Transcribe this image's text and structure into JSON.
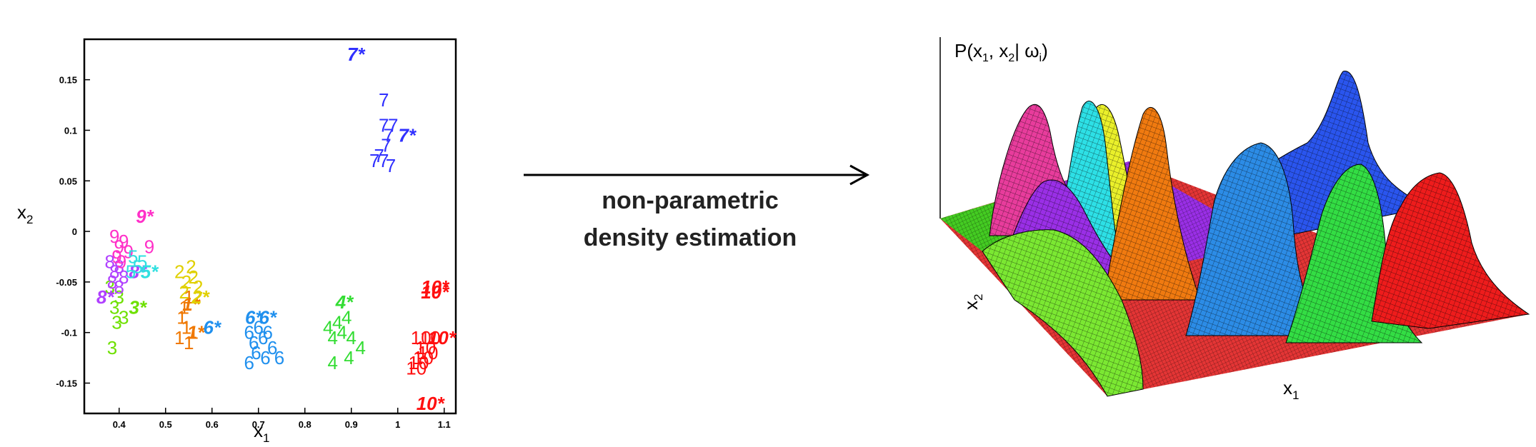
{
  "scatter": {
    "xlabel": "x",
    "xlabel_sub": "1",
    "ylabel": "x",
    "ylabel_sub": "2",
    "x_ticks": [
      "0.4",
      "0.5",
      "0.6",
      "0.7",
      "0.8",
      "0.9",
      "1",
      "1.1"
    ],
    "y_ticks": [
      "0.15",
      "0.1",
      "0.05",
      "0",
      "-0.05",
      "-0.1",
      "-0.15"
    ],
    "xlim": [
      0.325,
      1.125
    ],
    "ylim": [
      -0.18,
      0.19
    ],
    "clusters": [
      {
        "label": "1",
        "color": "#f07800",
        "points": [
          [
            0.53,
            -0.105
          ],
          [
            0.545,
            -0.095
          ],
          [
            0.55,
            -0.11
          ],
          [
            0.535,
            -0.085
          ],
          [
            0.56,
            -0.1
          ],
          [
            0.54,
            -0.075
          ],
          [
            0.55,
            -0.065
          ]
        ],
        "starred": [
          [
            0.565,
            -0.1
          ],
          [
            0.555,
            -0.072
          ]
        ]
      },
      {
        "label": "2",
        "color": "#e0d000",
        "points": [
          [
            0.53,
            -0.04
          ],
          [
            0.545,
            -0.05
          ],
          [
            0.56,
            -0.045
          ],
          [
            0.54,
            -0.06
          ],
          [
            0.555,
            -0.035
          ],
          [
            0.57,
            -0.055
          ]
        ],
        "starred": [
          [
            0.575,
            -0.065
          ]
        ]
      },
      {
        "label": "3",
        "color": "#6ee000",
        "points": [
          [
            0.38,
            -0.055
          ],
          [
            0.39,
            -0.075
          ],
          [
            0.4,
            -0.065
          ],
          [
            0.41,
            -0.085
          ],
          [
            0.395,
            -0.09
          ],
          [
            0.385,
            -0.115
          ]
        ],
        "starred": [
          [
            0.44,
            -0.075
          ]
        ]
      },
      {
        "label": "4",
        "color": "#33dd33",
        "points": [
          [
            0.85,
            -0.095
          ],
          [
            0.86,
            -0.105
          ],
          [
            0.87,
            -0.09
          ],
          [
            0.88,
            -0.1
          ],
          [
            0.89,
            -0.085
          ],
          [
            0.9,
            -0.105
          ],
          [
            0.92,
            -0.115
          ],
          [
            0.86,
            -0.13
          ],
          [
            0.895,
            -0.125
          ]
        ],
        "starred": [
          [
            0.885,
            -0.07
          ]
        ]
      },
      {
        "label": "6",
        "color": "#2090ee",
        "points": [
          [
            0.68,
            -0.1
          ],
          [
            0.69,
            -0.11
          ],
          [
            0.7,
            -0.095
          ],
          [
            0.71,
            -0.105
          ],
          [
            0.72,
            -0.1
          ],
          [
            0.695,
            -0.12
          ],
          [
            0.68,
            -0.13
          ],
          [
            0.715,
            -0.125
          ],
          [
            0.745,
            -0.125
          ],
          [
            0.73,
            -0.115
          ]
        ],
        "starred": [
          [
            0.69,
            -0.085
          ],
          [
            0.72,
            -0.085
          ],
          [
            0.6,
            -0.095
          ]
        ]
      },
      {
        "label": "7",
        "color": "#3030ff",
        "points": [
          [
            0.97,
            0.13
          ],
          [
            0.97,
            0.105
          ],
          [
            0.98,
            0.095
          ],
          [
            0.975,
            0.085
          ],
          [
            0.96,
            0.075
          ],
          [
            0.97,
            0.07
          ],
          [
            0.985,
            0.065
          ],
          [
            0.95,
            0.07
          ],
          [
            0.99,
            0.105
          ]
        ],
        "starred": [
          [
            0.91,
            0.175
          ],
          [
            1.02,
            0.095
          ]
        ]
      },
      {
        "label": "8",
        "color": "#b040ff",
        "points": [
          [
            0.38,
            -0.03
          ],
          [
            0.39,
            -0.04
          ],
          [
            0.4,
            -0.035
          ],
          [
            0.41,
            -0.045
          ],
          [
            0.385,
            -0.05
          ],
          [
            0.4,
            -0.055
          ]
        ],
        "starred": [
          [
            0.37,
            -0.065
          ],
          [
            0.44,
            -0.04
          ]
        ]
      },
      {
        "label": "9",
        "color": "#ff30c8",
        "points": [
          [
            0.39,
            -0.005
          ],
          [
            0.4,
            -0.015
          ],
          [
            0.41,
            -0.01
          ],
          [
            0.395,
            -0.025
          ],
          [
            0.405,
            -0.03
          ],
          [
            0.42,
            -0.02
          ],
          [
            0.465,
            -0.015
          ]
        ],
        "starred": [
          [
            0.455,
            0.015
          ]
        ]
      },
      {
        "label": "5",
        "color": "#30e0e0",
        "points": [
          [
            0.43,
            -0.025
          ],
          [
            0.44,
            -0.035
          ],
          [
            0.45,
            -0.03
          ],
          [
            0.425,
            -0.04
          ]
        ],
        "starred": [
          [
            0.465,
            -0.04
          ]
        ]
      },
      {
        "label": "10",
        "color": "#ff1010",
        "points": [
          [
            1.05,
            -0.105
          ],
          [
            1.06,
            -0.115
          ],
          [
            1.055,
            -0.125
          ],
          [
            1.045,
            -0.13
          ],
          [
            1.065,
            -0.12
          ],
          [
            1.04,
            -0.135
          ],
          [
            1.07,
            -0.105
          ]
        ],
        "starred": [
          [
            1.08,
            -0.055
          ],
          [
            1.08,
            -0.06
          ],
          [
            1.095,
            -0.105
          ],
          [
            1.07,
            -0.17
          ]
        ]
      }
    ]
  },
  "arrow": {
    "line1": "non-parametric",
    "line2": "density estimation"
  },
  "surface": {
    "zlabel_prefix": "P(x",
    "zlabel_s1": "1",
    "zlabel_mid": ", x",
    "zlabel_s2": "2",
    "zlabel_mid2": "| ω",
    "zlabel_s3": "i",
    "zlabel_end": ")",
    "xlabel": "x",
    "xlabel_sub": "1",
    "ylabel": "x",
    "ylabel_sub": "2",
    "colors": {
      "magenta": "#e83c9c",
      "purple": "#9a2fe6",
      "cyan": "#2de0e6",
      "yellow": "#eaf02a",
      "orange": "#f07a10",
      "blue": "#2a55ee",
      "lightblue": "#2c8ce6",
      "green": "#33dd44",
      "lightgreen": "#7be832",
      "red": "#ee1c1c",
      "floorgreen": "#44cc22"
    }
  }
}
